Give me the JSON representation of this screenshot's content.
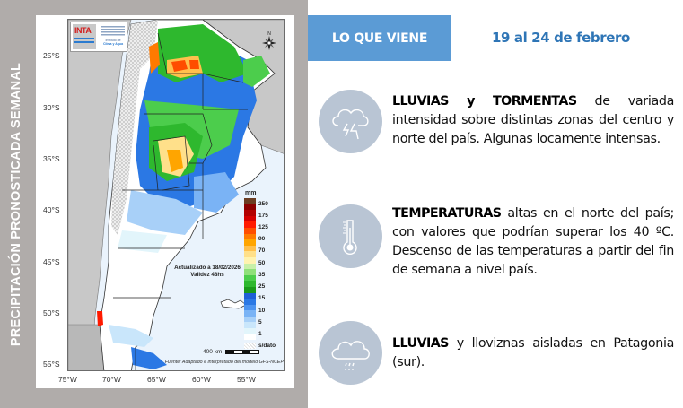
{
  "left_panel": {
    "vertical_title": "PRECIPITACIÓN PRONOSTICADA SEMANAL",
    "colors": {
      "background": "#b0acaa",
      "title": "#ffffff"
    }
  },
  "map": {
    "logos": {
      "inta": "INTA",
      "clima_line1": "Instituto de",
      "clima_line2": "Clima y Agua"
    },
    "compass_label": "N",
    "lat_labels": [
      "25°S",
      "30°S",
      "35°S",
      "40°S",
      "45°S",
      "50°S",
      "55°S"
    ],
    "lon_labels": [
      "75°W",
      "70°W",
      "65°W",
      "60°W",
      "55°W"
    ],
    "update_note": {
      "line1": "Actualizado a 18/02/2026",
      "line2": "Validez 48hs"
    },
    "scale_label": "400 km",
    "source": "Fuente: Adaptado e interpretado del modelo GFS-NCEP",
    "legend": {
      "unit": "mm",
      "labels": [
        "250",
        "175",
        "125",
        "90",
        "70",
        "50",
        "35",
        "25",
        "15",
        "10",
        "5",
        "1",
        "s/dato"
      ],
      "colors": [
        "#6b3d22",
        "#8b0000",
        "#b30000",
        "#d40000",
        "#ff1a00",
        "#ff4d00",
        "#ff7a00",
        "#ffa500",
        "#ffc04d",
        "#ffe08a",
        "#fff3b0",
        "#c8f0a8",
        "#8fe07a",
        "#4ccd4c",
        "#2eb82e",
        "#1a9a1a",
        "#1f5fd6",
        "#2b78e4",
        "#4d94f0",
        "#7ab3f5",
        "#a8d0f8",
        "#c9e6fb",
        "#e2f5fb",
        "#ffffff"
      ]
    }
  },
  "header": {
    "tab_label": "LO QUE VIENE",
    "date_range": "19 al 24 de febrero",
    "colors": {
      "tab_bg": "#5b9bd5",
      "date": "#2e75b6"
    }
  },
  "items": [
    {
      "icon": "thunderstorm-icon",
      "bold": "LLUVIAS y TORMENTAS",
      "text": " de variada intensidad sobre distintas zonas del centro y norte del país. Algunas locamente intensas."
    },
    {
      "icon": "thermometer-icon",
      "bold": "TEMPERATURAS",
      "text": " altas en el norte del país; con valores que podrían superar los 40 ºC. Descenso de las temperaturas a partir del fin de semana a nivel país."
    },
    {
      "icon": "rain-cloud-icon",
      "bold": "LLUVIAS",
      "text": " y lloviznas aisladas en Patagonia (sur)."
    }
  ],
  "colors": {
    "icon_circle": "#b9c5d4",
    "text": "#111111"
  }
}
